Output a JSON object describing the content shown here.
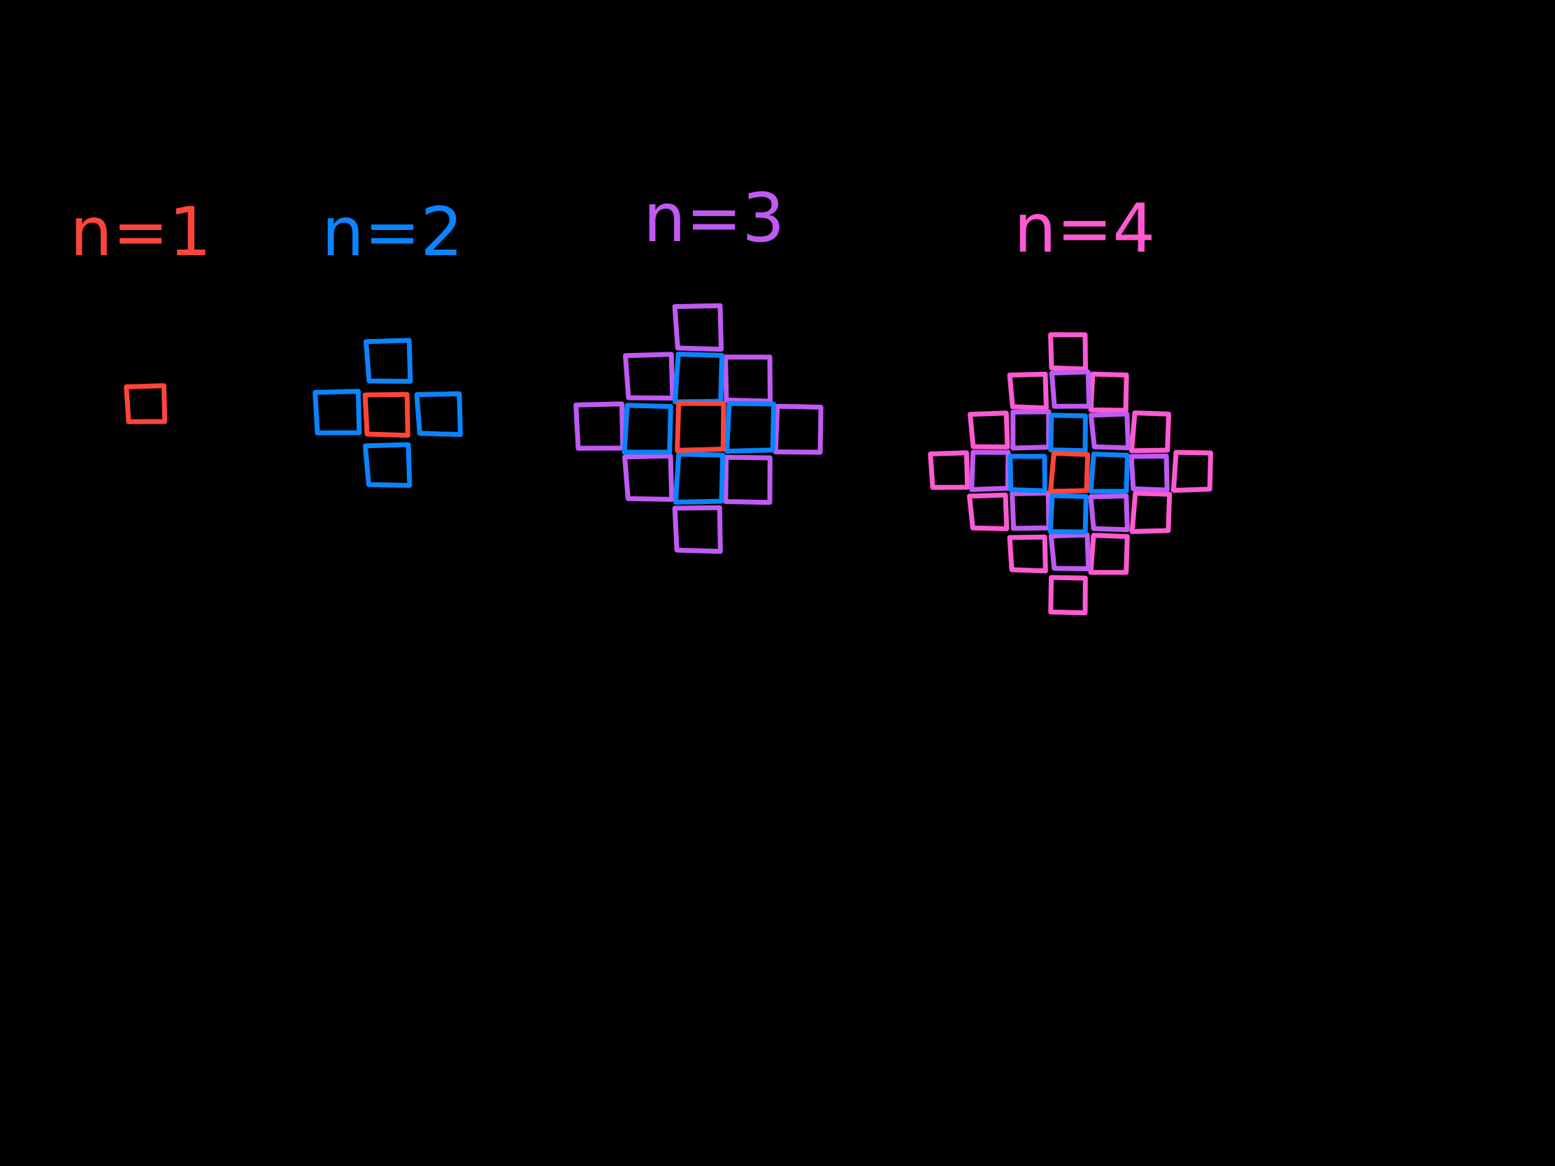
{
  "colors": {
    "background": "#000000",
    "red": "#ff453a",
    "blue": "#0a84ff",
    "purple": "#bf5af2",
    "pink": "#ff5ad2"
  },
  "figures": [
    {
      "label": "n=1",
      "color_key": "red",
      "cell_count": 1
    },
    {
      "label": "n=2",
      "color_key": "blue",
      "cell_count": 5
    },
    {
      "label": "n=3",
      "color_key": "purple",
      "cell_count": 13
    },
    {
      "label": "n=4",
      "color_key": "pink",
      "cell_count": 25
    }
  ]
}
